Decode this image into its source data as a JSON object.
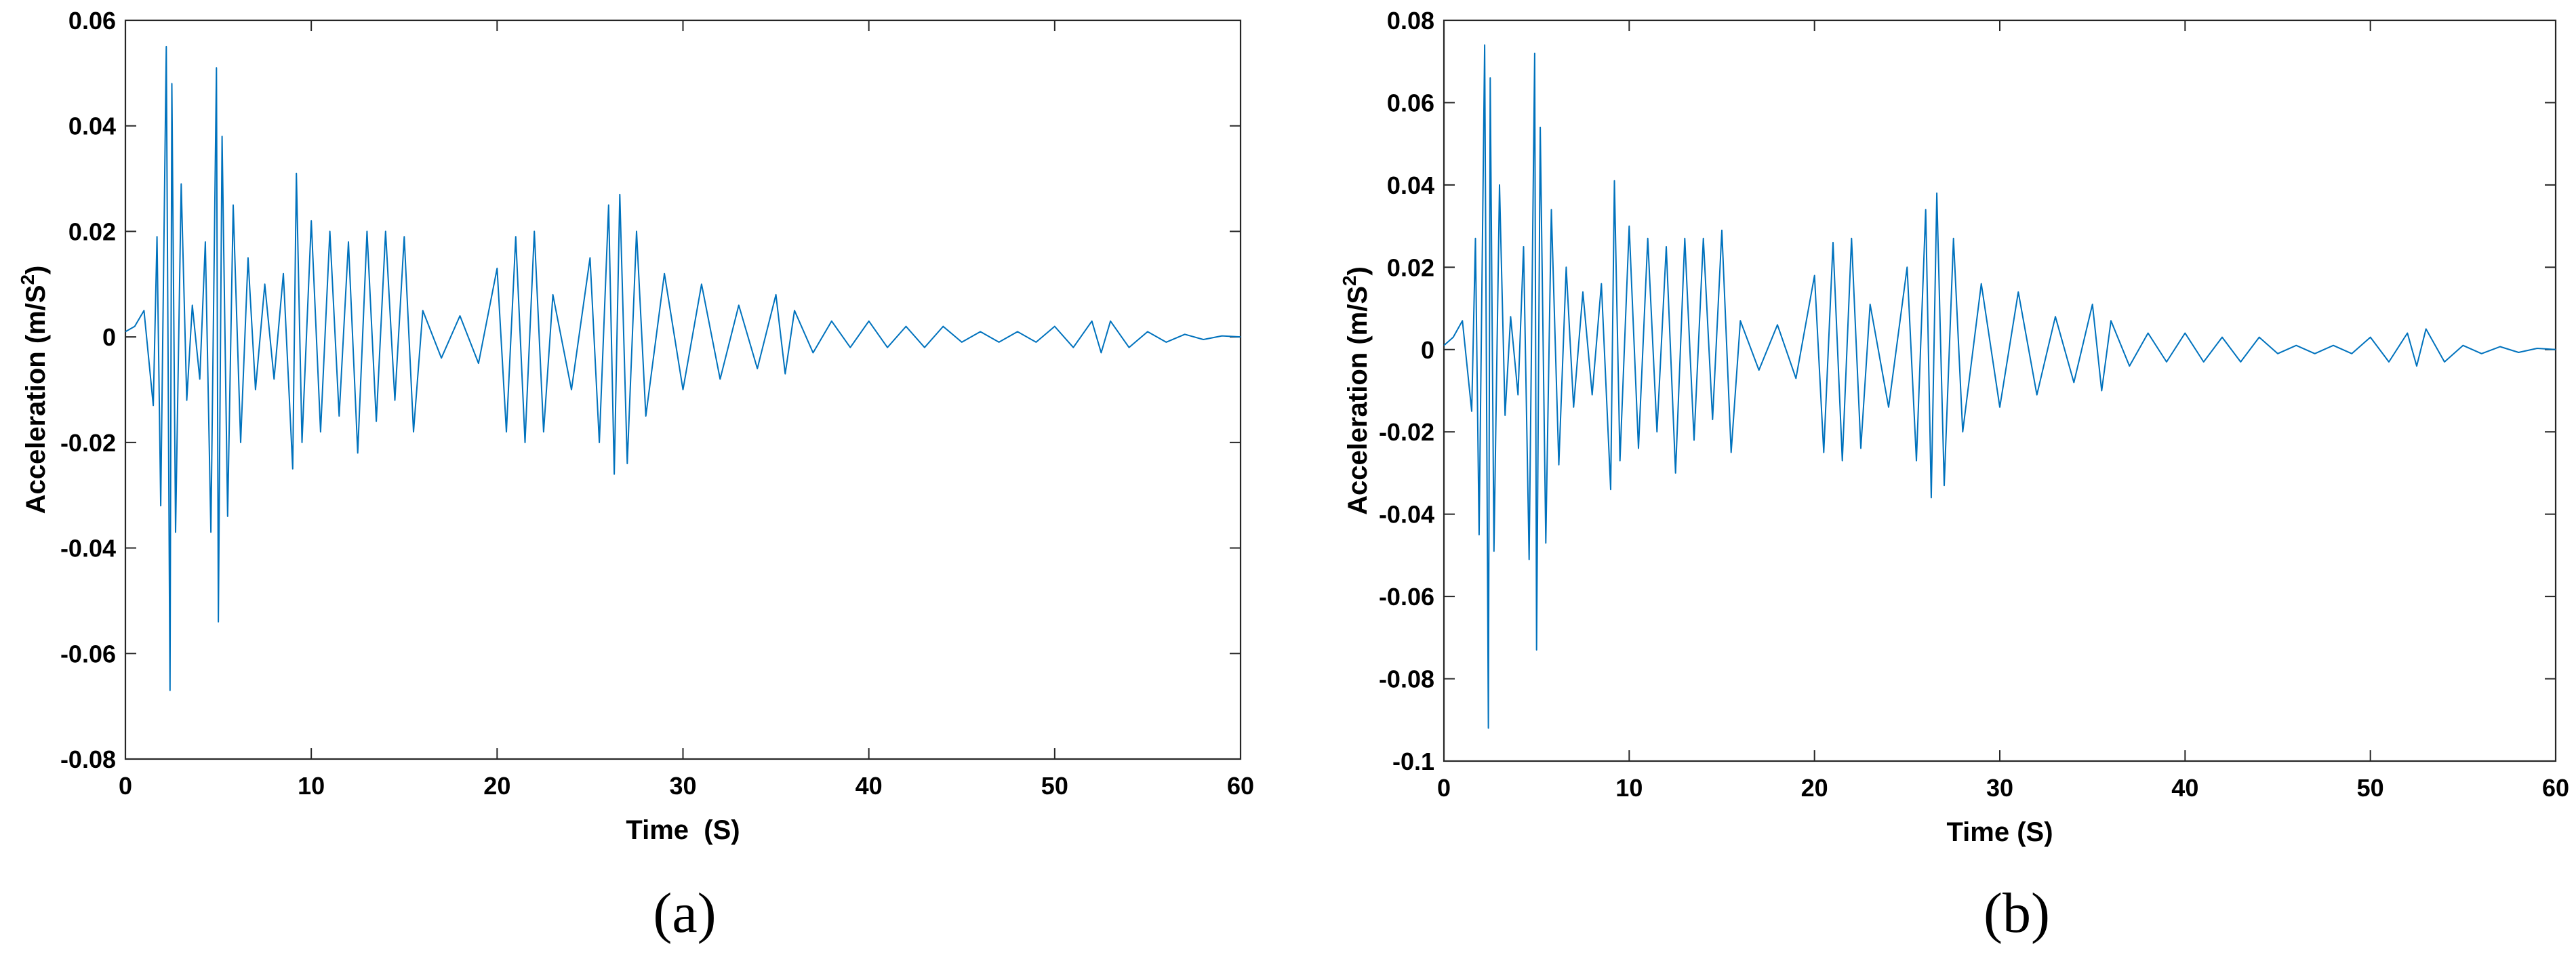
{
  "colors": {
    "trace": "#0072BD",
    "axes": "#262626"
  },
  "chart_data": [
    {
      "type": "line",
      "panel": "(a)",
      "xlabel": "Time  (S)",
      "ylabel": "Acceleration (m/S",
      "ylabel_sup": "2",
      "ylabel_close": ")",
      "xlim": [
        0,
        60
      ],
      "ylim": [
        -0.08,
        0.06
      ],
      "xticks": [
        0,
        10,
        20,
        30,
        40,
        50,
        60
      ],
      "yticks": [
        -0.08,
        -0.06,
        -0.04,
        -0.02,
        0,
        0.02,
        0.04,
        0.06
      ],
      "xtick_labels": [
        "0",
        "10",
        "20",
        "30",
        "40",
        "50",
        "60"
      ],
      "ytick_labels": [
        "-0.08",
        "-0.06",
        "-0.04",
        "-0.02",
        "0",
        "0.02",
        "0.04",
        "0.06"
      ],
      "grid": false,
      "series": [
        {
          "x": [
            0,
            0.5,
            1.0,
            1.5,
            1.7,
            1.9,
            2.2,
            2.4,
            2.5,
            2.7,
            3.0,
            3.3,
            3.6,
            4.0,
            4.3,
            4.6,
            4.9,
            5.0,
            5.2,
            5.5,
            5.8,
            6.2,
            6.6,
            7.0,
            7.5,
            8.0,
            8.5,
            9.0,
            9.2,
            9.5,
            10.0,
            10.5,
            11.0,
            11.5,
            12.0,
            12.5,
            13.0,
            13.5,
            14.0,
            14.5,
            15.0,
            15.5,
            16.0,
            17.0,
            18.0,
            19.0,
            20.0,
            20.5,
            21.0,
            21.5,
            22.0,
            22.5,
            23.0,
            24.0,
            25.0,
            25.5,
            26.0,
            26.3,
            26.6,
            27.0,
            27.5,
            28.0,
            29.0,
            30.0,
            31.0,
            32.0,
            33.0,
            34.0,
            35.0,
            35.5,
            36.0,
            37.0,
            38.0,
            39.0,
            40.0,
            41.0,
            42.0,
            43.0,
            44.0,
            45.0,
            46.0,
            47.0,
            48.0,
            49.0,
            50.0,
            51.0,
            52.0,
            52.5,
            53.0,
            54.0,
            55.0,
            56.0,
            57.0,
            58.0,
            59.0,
            60.0
          ],
          "y": [
            0.001,
            0.002,
            0.005,
            -0.013,
            0.019,
            -0.032,
            0.055,
            -0.067,
            0.048,
            -0.037,
            0.029,
            -0.012,
            0.006,
            -0.008,
            0.018,
            -0.037,
            0.051,
            -0.054,
            0.038,
            -0.034,
            0.025,
            -0.02,
            0.015,
            -0.01,
            0.01,
            -0.008,
            0.012,
            -0.025,
            0.031,
            -0.02,
            0.022,
            -0.018,
            0.02,
            -0.015,
            0.018,
            -0.022,
            0.02,
            -0.016,
            0.02,
            -0.012,
            0.019,
            -0.018,
            0.005,
            -0.004,
            0.004,
            -0.005,
            0.013,
            -0.018,
            0.019,
            -0.02,
            0.02,
            -0.018,
            0.008,
            -0.01,
            0.015,
            -0.02,
            0.025,
            -0.026,
            0.027,
            -0.024,
            0.02,
            -0.015,
            0.012,
            -0.01,
            0.01,
            -0.008,
            0.006,
            -0.006,
            0.008,
            -0.007,
            0.005,
            -0.003,
            0.003,
            -0.002,
            0.003,
            -0.002,
            0.002,
            -0.002,
            0.002,
            -0.001,
            0.001,
            -0.001,
            0.001,
            -0.001,
            0.002,
            -0.002,
            0.003,
            -0.003,
            0.003,
            -0.002,
            0.001,
            -0.001,
            0.0005,
            -0.0005,
            0.0002,
            0
          ]
        }
      ]
    },
    {
      "type": "line",
      "panel": "(b)",
      "xlabel": "Time (S)",
      "ylabel": "Acceleration (m/S",
      "ylabel_sup": "2",
      "ylabel_close": ")",
      "xlim": [
        0,
        60
      ],
      "ylim": [
        -0.1,
        0.08
      ],
      "xticks": [
        0,
        10,
        20,
        30,
        40,
        50,
        60
      ],
      "yticks": [
        -0.1,
        -0.08,
        -0.06,
        -0.04,
        -0.02,
        0,
        0.02,
        0.04,
        0.06,
        0.08
      ],
      "xtick_labels": [
        "0",
        "10",
        "20",
        "30",
        "40",
        "50",
        "60"
      ],
      "ytick_labels": [
        "-0.1",
        "-0.08",
        "-0.06",
        "-0.04",
        "-0.02",
        "0",
        "0.02",
        "0.04",
        "0.06",
        "0.08"
      ],
      "grid": false,
      "series": [
        {
          "x": [
            0,
            0.5,
            1.0,
            1.5,
            1.7,
            1.9,
            2.2,
            2.4,
            2.5,
            2.7,
            3.0,
            3.3,
            3.6,
            4.0,
            4.3,
            4.6,
            4.9,
            5.0,
            5.2,
            5.5,
            5.8,
            6.2,
            6.6,
            7.0,
            7.5,
            8.0,
            8.5,
            9.0,
            9.2,
            9.5,
            10.0,
            10.5,
            11.0,
            11.5,
            12.0,
            12.5,
            13.0,
            13.5,
            14.0,
            14.5,
            15.0,
            15.5,
            16.0,
            17.0,
            18.0,
            19.0,
            20.0,
            20.5,
            21.0,
            21.5,
            22.0,
            22.5,
            23.0,
            24.0,
            25.0,
            25.5,
            26.0,
            26.3,
            26.6,
            27.0,
            27.5,
            28.0,
            29.0,
            30.0,
            31.0,
            32.0,
            33.0,
            34.0,
            35.0,
            35.5,
            36.0,
            37.0,
            38.0,
            39.0,
            40.0,
            41.0,
            42.0,
            43.0,
            44.0,
            45.0,
            46.0,
            47.0,
            48.0,
            49.0,
            50.0,
            51.0,
            52.0,
            52.5,
            53.0,
            54.0,
            55.0,
            56.0,
            57.0,
            58.0,
            59.0,
            60.0
          ],
          "y": [
            0.001,
            0.003,
            0.007,
            -0.015,
            0.027,
            -0.045,
            0.074,
            -0.092,
            0.066,
            -0.049,
            0.04,
            -0.016,
            0.008,
            -0.011,
            0.025,
            -0.051,
            0.072,
            -0.073,
            0.054,
            -0.047,
            0.034,
            -0.028,
            0.02,
            -0.014,
            0.014,
            -0.011,
            0.016,
            -0.034,
            0.041,
            -0.027,
            0.03,
            -0.024,
            0.027,
            -0.02,
            0.025,
            -0.03,
            0.027,
            -0.022,
            0.027,
            -0.017,
            0.029,
            -0.025,
            0.007,
            -0.005,
            0.006,
            -0.007,
            0.018,
            -0.025,
            0.026,
            -0.027,
            0.027,
            -0.024,
            0.011,
            -0.014,
            0.02,
            -0.027,
            0.034,
            -0.036,
            0.038,
            -0.033,
            0.027,
            -0.02,
            0.016,
            -0.014,
            0.014,
            -0.011,
            0.008,
            -0.008,
            0.011,
            -0.01,
            0.007,
            -0.004,
            0.004,
            -0.003,
            0.004,
            -0.003,
            0.003,
            -0.003,
            0.003,
            -0.001,
            0.001,
            -0.001,
            0.001,
            -0.001,
            0.003,
            -0.003,
            0.004,
            -0.004,
            0.005,
            -0.003,
            0.001,
            -0.001,
            0.0007,
            -0.0007,
            0.0003,
            0
          ]
        }
      ]
    }
  ]
}
